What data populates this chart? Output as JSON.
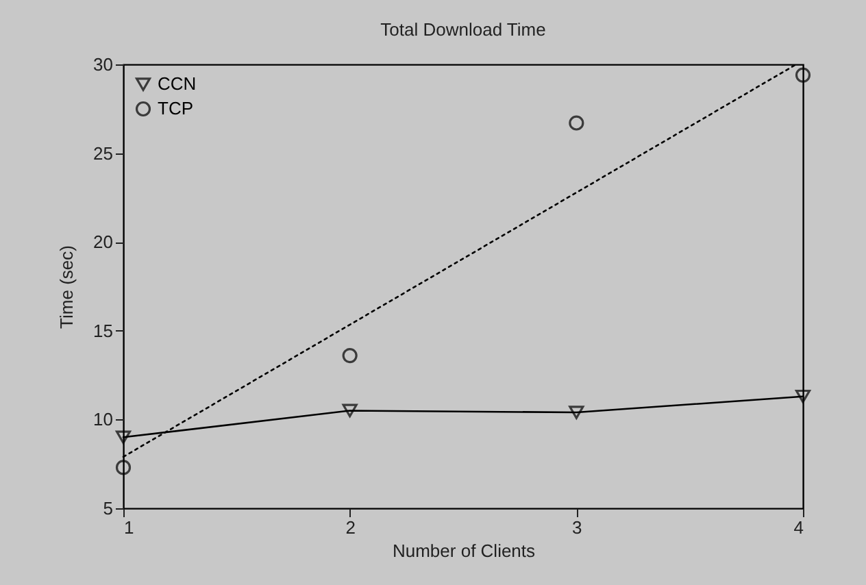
{
  "chart_data": {
    "type": "line",
    "title": "Total Download Time",
    "xlabel": "Number of Clients",
    "ylabel": "Time (sec)",
    "x": [
      1,
      2,
      3,
      4
    ],
    "series": [
      {
        "name": "CCN",
        "marker": "triangle",
        "line_style": "solid",
        "color": "#000000",
        "values": [
          9.0,
          10.5,
          10.4,
          11.3
        ]
      },
      {
        "name": "TCP",
        "type": "scatter",
        "marker": "circle",
        "color": "#000000",
        "values": [
          7.3,
          13.6,
          26.7,
          29.4
        ]
      },
      {
        "marker": "none",
        "line_style": "dotted",
        "color": "#000000",
        "x": [
          1,
          3.97
        ],
        "values": [
          7.9,
          30
        ]
      }
    ],
    "xlim": [
      1,
      4
    ],
    "xticks": [
      1,
      2,
      3,
      4
    ],
    "ylim": [
      5,
      30
    ],
    "yticks": [
      5,
      10,
      15,
      20,
      25,
      30
    ],
    "grid": false,
    "legend": "top left"
  }
}
